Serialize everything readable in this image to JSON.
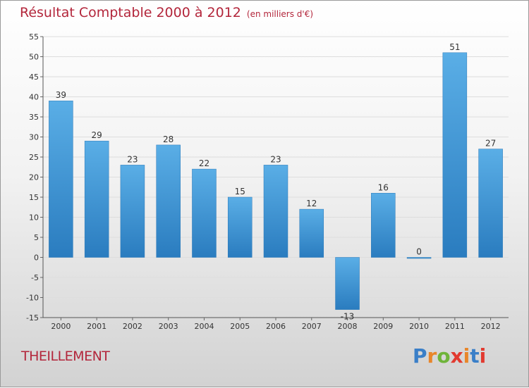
{
  "header": {
    "title": "Résultat Comptable 2000 à 2012",
    "unit": "(en milliers d'€)"
  },
  "commune": "THEILLEMENT",
  "logo": {
    "letters": [
      "P",
      "r",
      "o",
      "x",
      "i",
      "t",
      "i"
    ],
    "colors": [
      "#3a7fc8",
      "#e8862a",
      "#6fb43a",
      "#e23a30",
      "#e8862a",
      "#3a7fc8",
      "#e23a30"
    ]
  },
  "colors": {
    "title": "#b3263b",
    "bar_light": "#5aaee6",
    "bar_dark": "#2a7cbf"
  },
  "chart_data": {
    "type": "bar",
    "title": "Résultat Comptable 2000 à 2012",
    "subtitle": "(en milliers d'€)",
    "xlabel": "",
    "ylabel": "",
    "categories": [
      "2000",
      "2001",
      "2002",
      "2003",
      "2004",
      "2005",
      "2006",
      "2007",
      "2008",
      "2009",
      "2010",
      "2011",
      "2012"
    ],
    "values": [
      39,
      29,
      23,
      28,
      22,
      15,
      23,
      12,
      -13,
      16,
      0,
      51,
      27
    ],
    "value_labels": [
      "39",
      "29",
      "23",
      "28",
      "22",
      "15",
      "23",
      "12",
      "-13",
      "16",
      "0",
      "51",
      "27"
    ],
    "ylim": [
      -15,
      55
    ],
    "yticks": [
      -15,
      -10,
      -5,
      0,
      5,
      10,
      15,
      20,
      25,
      30,
      35,
      40,
      45,
      50,
      55
    ],
    "ytick_labels": [
      "-15",
      "-10",
      "-5",
      "0",
      "5",
      "10",
      "15",
      "20",
      "25",
      "30",
      "35",
      "40",
      "45",
      "50",
      "55"
    ],
    "grid": true,
    "legend": "none"
  }
}
